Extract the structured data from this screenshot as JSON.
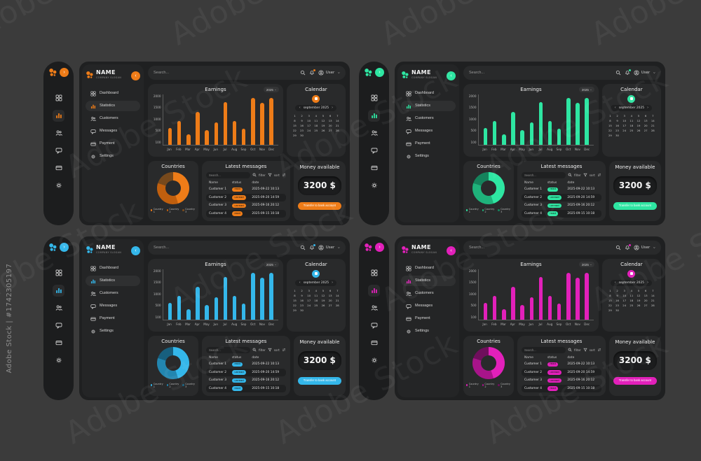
{
  "watermark": {
    "brand": "Adobe Stock",
    "id_label": "Adobe Stock | #1742305197"
  },
  "variants": [
    {
      "name": "orange",
      "accent": "#ee7c18",
      "donut": [
        "#ee7c18",
        "#c05f0e",
        "#77491c"
      ]
    },
    {
      "name": "green",
      "accent": "#2ee6a2",
      "donut": [
        "#2ee6a2",
        "#1fb27b",
        "#15835c"
      ]
    },
    {
      "name": "blue",
      "accent": "#34b7ea",
      "donut": [
        "#34b7ea",
        "#2286b0",
        "#175f7e"
      ]
    },
    {
      "name": "magenta",
      "accent": "#e220ba",
      "donut": [
        "#e220ba",
        "#a8148a",
        "#6f0f5c"
      ]
    }
  ],
  "dashboard": {
    "brand": {
      "name": "NAME",
      "slogan": "COMPANY SLOGAN"
    },
    "rail": {
      "expand_chevron": "›"
    },
    "nav_collapse_chevron": "‹",
    "menu": [
      {
        "label": "Dashboard",
        "icon": "dashboard-icon",
        "active": false
      },
      {
        "label": "Statistics",
        "icon": "statistics-icon",
        "active": true
      },
      {
        "label": "Customers",
        "icon": "customers-icon",
        "active": false
      },
      {
        "label": "Messages",
        "icon": "messages-icon",
        "active": false
      },
      {
        "label": "Payment",
        "icon": "payment-icon",
        "active": false
      },
      {
        "label": "Settings",
        "icon": "settings-icon",
        "active": false
      }
    ],
    "topbar": {
      "search_placeholder": "Search...",
      "user_label": "User"
    },
    "earnings": {
      "title": "Earnings",
      "year_selector": "2025"
    },
    "calendar": {
      "title": "Calendar",
      "month_label": "september 2025",
      "prev": "‹",
      "next": "›",
      "days": [
        1,
        2,
        3,
        4,
        5,
        6,
        7,
        8,
        9,
        10,
        11,
        12,
        13,
        14,
        15,
        16,
        17,
        18,
        19,
        20,
        21,
        22,
        23,
        24,
        25,
        26,
        27,
        28,
        29,
        30
      ]
    },
    "countries": {
      "title": "Countries",
      "legend": [
        "Country 1",
        "Country 2",
        "Country 3"
      ],
      "values": [
        45,
        35,
        20
      ]
    },
    "messages": {
      "title": "Latest messages",
      "search_placeholder": "Search...",
      "filter_label": "filter",
      "sort_label": "sort",
      "columns": [
        "Name",
        "status",
        "date"
      ],
      "rows": [
        {
          "name": "Customer 1",
          "status": "read",
          "date": "2025-09-22 10:13"
        },
        {
          "name": "Customer 2",
          "status": "unread",
          "date": "2025-09-20 14:59"
        },
        {
          "name": "Customer 3",
          "status": "unread",
          "date": "2025-09-16 20:12"
        },
        {
          "name": "Customer 4",
          "status": "read",
          "date": "2025-09-15 10:18"
        }
      ]
    },
    "money": {
      "title": "Money available",
      "amount": "3200 $",
      "button_label": "Transfer to bank account"
    }
  },
  "chart_data": [
    {
      "type": "bar",
      "title": "Earnings",
      "categories": [
        "Jan",
        "Feb",
        "Mar",
        "Apr",
        "May",
        "Jun",
        "Jul",
        "Aug",
        "Sep",
        "Oct",
        "Nov",
        "Dec"
      ],
      "values": [
        650,
        950,
        400,
        1300,
        580,
        870,
        1700,
        950,
        640,
        1850,
        1670,
        1850
      ],
      "xlabel": "",
      "ylabel": "",
      "yticks": [
        100,
        500,
        1000,
        1500,
        2000
      ],
      "ylim": [
        0,
        2000
      ],
      "grid": false,
      "legend_position": "none",
      "note": "identical chart repeated in 4 accent-color variants (orange, green, blue, magenta)"
    },
    {
      "type": "pie",
      "title": "Countries",
      "categories": [
        "Country 1",
        "Country 2",
        "Country 3"
      ],
      "values": [
        45,
        35,
        20
      ],
      "legend_position": "bottom",
      "note": "donut chart, identical data repeated in 4 accent-color variants"
    }
  ]
}
